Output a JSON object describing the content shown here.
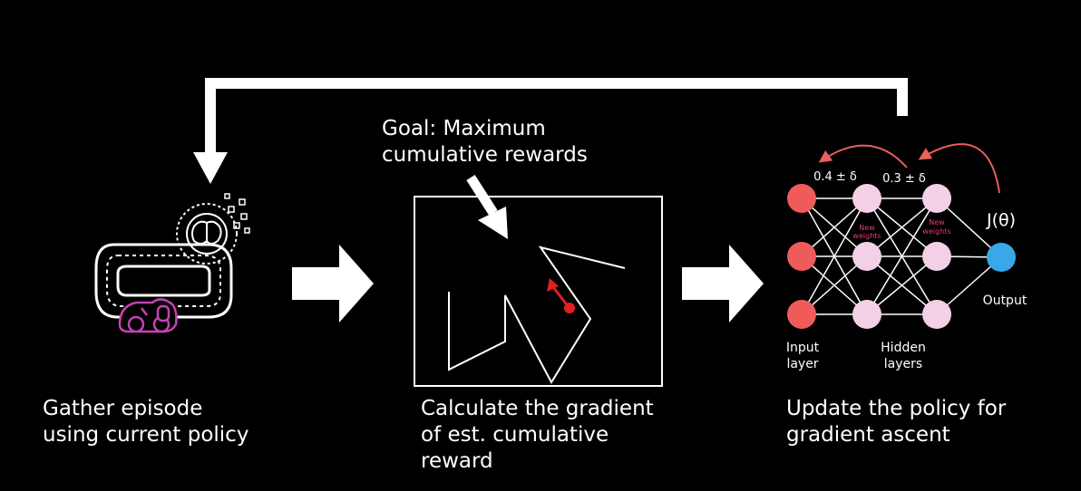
{
  "steps": [
    {
      "line1": "Gather episode",
      "line2": "using current policy"
    },
    {
      "line1": "Calculate the gradient",
      "line2": "of est. cumulative",
      "line3": "reward"
    },
    {
      "line1": "Update the policy for",
      "line2": "gradient ascent"
    }
  ],
  "goal": {
    "line1": "Goal: Maximum",
    "line2": "cumulative rewards"
  },
  "network": {
    "weight_label_1": "0.4 ± δ",
    "weight_label_2": "0.3 ± δ",
    "new_weights_line1": "New",
    "new_weights_line2": "weights",
    "objective": "J(θ)",
    "output_label": "Output",
    "input_label_line1": "Input",
    "input_label_line2": "layer",
    "hidden_label_line1": "Hidden",
    "hidden_label_line2": "layers"
  },
  "colors": {
    "background": "#000000",
    "foreground": "#ffffff",
    "input_node": "#ef5b5b",
    "hidden_node": "#f4d0e6",
    "output_node": "#3aa8e8",
    "update_arrow": "#e8605c",
    "gradient_arrow": "#e02020",
    "new_weights_text": "#e83a78",
    "car_outline": "#c642b5"
  }
}
